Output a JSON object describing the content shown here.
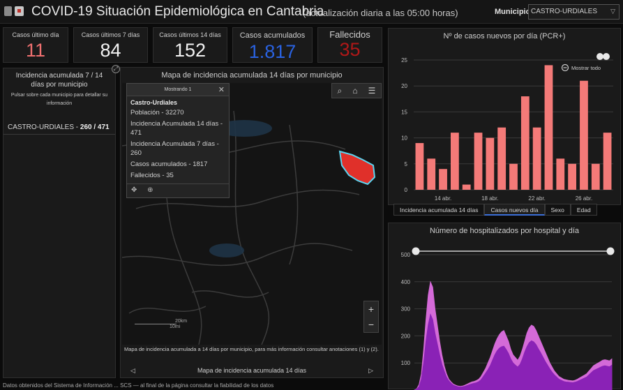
{
  "header": {
    "title": "COVID-19 Situación Epidemiológica en Cantabria",
    "subtitle": "(actualización diaria a las 05:00 horas)",
    "municipio_label": "Municipio",
    "municipio_value": "CASTRO-URDIALES"
  },
  "stats": [
    {
      "label": "Casos último día",
      "value": "11",
      "color": "#f07070"
    },
    {
      "label": "Casos últimos 7 días",
      "value": "84",
      "color": "#f2f2f2"
    },
    {
      "label": "Casos últimos 14 días",
      "value": "152",
      "color": "#f2f2f2"
    },
    {
      "label": "Casos acumulados",
      "value": "1.817",
      "color": "#2a62e0"
    },
    {
      "label": "Fallecidos",
      "value": "35",
      "color": "#b01818"
    }
  ],
  "incidence": {
    "title": "Incidencia acumulada 7 / 14 días por municipio",
    "hint": "Pulsar sobre cada municipio para detallar su información",
    "row_name": "CASTRO-URDIALES - ",
    "row_value": "260 / 471"
  },
  "map": {
    "title": "Mapa de incidencia acumulada 14 días por municipio",
    "popup": {
      "header": "Mostrando 1",
      "name": "Castro-Urdiales",
      "lines": [
        "Población - 32270",
        "Incidencia Acumulada 14 días - 471",
        "Incidencia Acumulada 7 días - 260",
        "Casos acumulados - 1817",
        "Fallecidos - 35"
      ]
    },
    "scale_km": "20km",
    "scale_mi": "10mi",
    "note": "Mapa de incidencia acumulada a 14 días por municipio, para más información consultar anotaciones (1) y (2).",
    "nav_label": "Mapa de incidencia acumulada 14 días",
    "highlight_color": "#e0302a"
  },
  "tabs": [
    {
      "label": "Incidencia acumulada 14 días",
      "active": false
    },
    {
      "label": "Casos nuevos día",
      "active": true
    },
    {
      "label": "Sexo",
      "active": false
    },
    {
      "label": "Edad",
      "active": false
    }
  ],
  "footer_note": "Datos obtenidos del Sistema de Información ... SCS — al final de la página consultar la fiabilidad de los datos",
  "chart_data": [
    {
      "type": "bar",
      "title": "Nº de casos nuevos por día (PCR+)",
      "show_all_label": "Mostrar todo",
      "x_ticks": [
        "14 abr.",
        "18 abr.",
        "22 abr.",
        "26 abr."
      ],
      "tick_indices": [
        2,
        6,
        10,
        14
      ],
      "values": [
        9,
        6,
        4,
        11,
        1,
        11,
        10,
        12,
        5,
        18,
        12,
        24,
        6,
        5,
        21,
        5,
        11
      ],
      "ylim": [
        0,
        25
      ],
      "yticks": [
        0,
        5,
        10,
        15,
        20,
        25
      ],
      "color": "#f47a78",
      "grid": true
    },
    {
      "type": "area",
      "title": "Número de hospitalizados por hospital y día",
      "ylim": [
        0,
        500
      ],
      "yticks": [
        100,
        200,
        300,
        400,
        500
      ],
      "series": [
        {
          "values": [
            0,
            5,
            20,
            60,
            150,
            260,
            350,
            400,
            380,
            300,
            240,
            180,
            130,
            90,
            60,
            40,
            30,
            22,
            18,
            15,
            14,
            15,
            18,
            22,
            26,
            30,
            32,
            35,
            40,
            50,
            65,
            80,
            100,
            120,
            145,
            170,
            190,
            205,
            215,
            220,
            200,
            180,
            150,
            130,
            120,
            110,
            125,
            150,
            180,
            210,
            230,
            240,
            235,
            220,
            200,
            180,
            160,
            140,
            120,
            100,
            85,
            70,
            60,
            50,
            45,
            40,
            38,
            36,
            35,
            34,
            36,
            40,
            45,
            50,
            55,
            60,
            70,
            80,
            90,
            95,
            100,
            105,
            110,
            112,
            110,
            108,
            115
          ]
        },
        {
          "values": [
            0,
            3,
            12,
            40,
            100,
            180,
            240,
            280,
            260,
            210,
            170,
            130,
            95,
            70,
            48,
            34,
            25,
            18,
            15,
            12,
            11,
            12,
            14,
            17,
            20,
            23,
            25,
            27,
            31,
            38,
            50,
            62,
            75,
            90,
            110,
            130,
            145,
            155,
            160,
            162,
            150,
            135,
            115,
            100,
            92,
            85,
            95,
            115,
            140,
            160,
            175,
            182,
            178,
            168,
            152,
            138,
            122,
            106,
            92,
            78,
            66,
            56,
            48,
            40,
            36,
            32,
            30,
            29,
            28,
            27,
            29,
            32,
            36,
            40,
            44,
            48,
            56,
            64,
            72,
            76,
            80,
            84,
            88,
            90,
            88,
            86,
            92
          ]
        }
      ],
      "colors": [
        "#d46ad8",
        "#8a22b6"
      ]
    }
  ]
}
